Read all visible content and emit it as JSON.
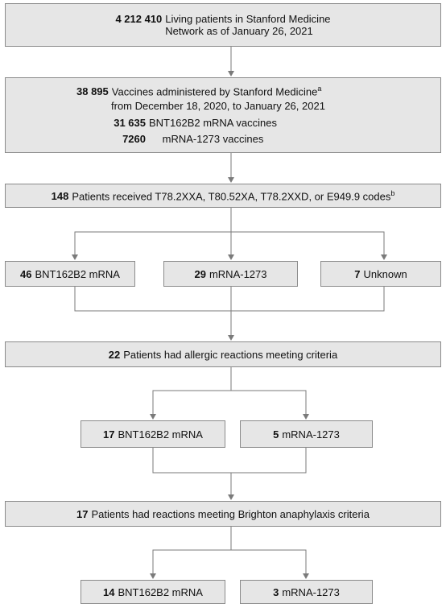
{
  "nodes": [
    {
      "count": "4 212 410",
      "line1": "Living patients in Stanford Medicine",
      "line2": "Network as of January 26, 2021"
    },
    {
      "count": "38 895",
      "line1": "Vaccines administered by Stanford Medicine",
      "note": "a",
      "line2": "from December 18, 2020, to January 26, 2021",
      "items": [
        {
          "count": "31 635",
          "label": "BNT162B2 mRNA vaccines"
        },
        {
          "count": "7260",
          "label": "mRNA-1273 vaccines"
        }
      ]
    },
    {
      "count": "148",
      "label": "Patients received T78.2XXA, T80.52XA, T78.2XXD, or E949.9 codes",
      "note": "b"
    },
    {
      "count": "46",
      "label": "BNT162B2 mRNA"
    },
    {
      "count": "29",
      "label": "mRNA-1273"
    },
    {
      "count": "7",
      "label": "Unknown"
    },
    {
      "count": "22",
      "label": "Patients had allergic reactions meeting criteria"
    },
    {
      "count": "17",
      "label": "BNT162B2 mRNA"
    },
    {
      "count": "5",
      "label": "mRNA-1273"
    },
    {
      "count": "17",
      "label": "Patients had reactions meeting Brighton anaphylaxis criteria"
    },
    {
      "count": "14",
      "label": "BNT162B2 mRNA"
    },
    {
      "count": "3",
      "label": "mRNA-1273"
    }
  ]
}
